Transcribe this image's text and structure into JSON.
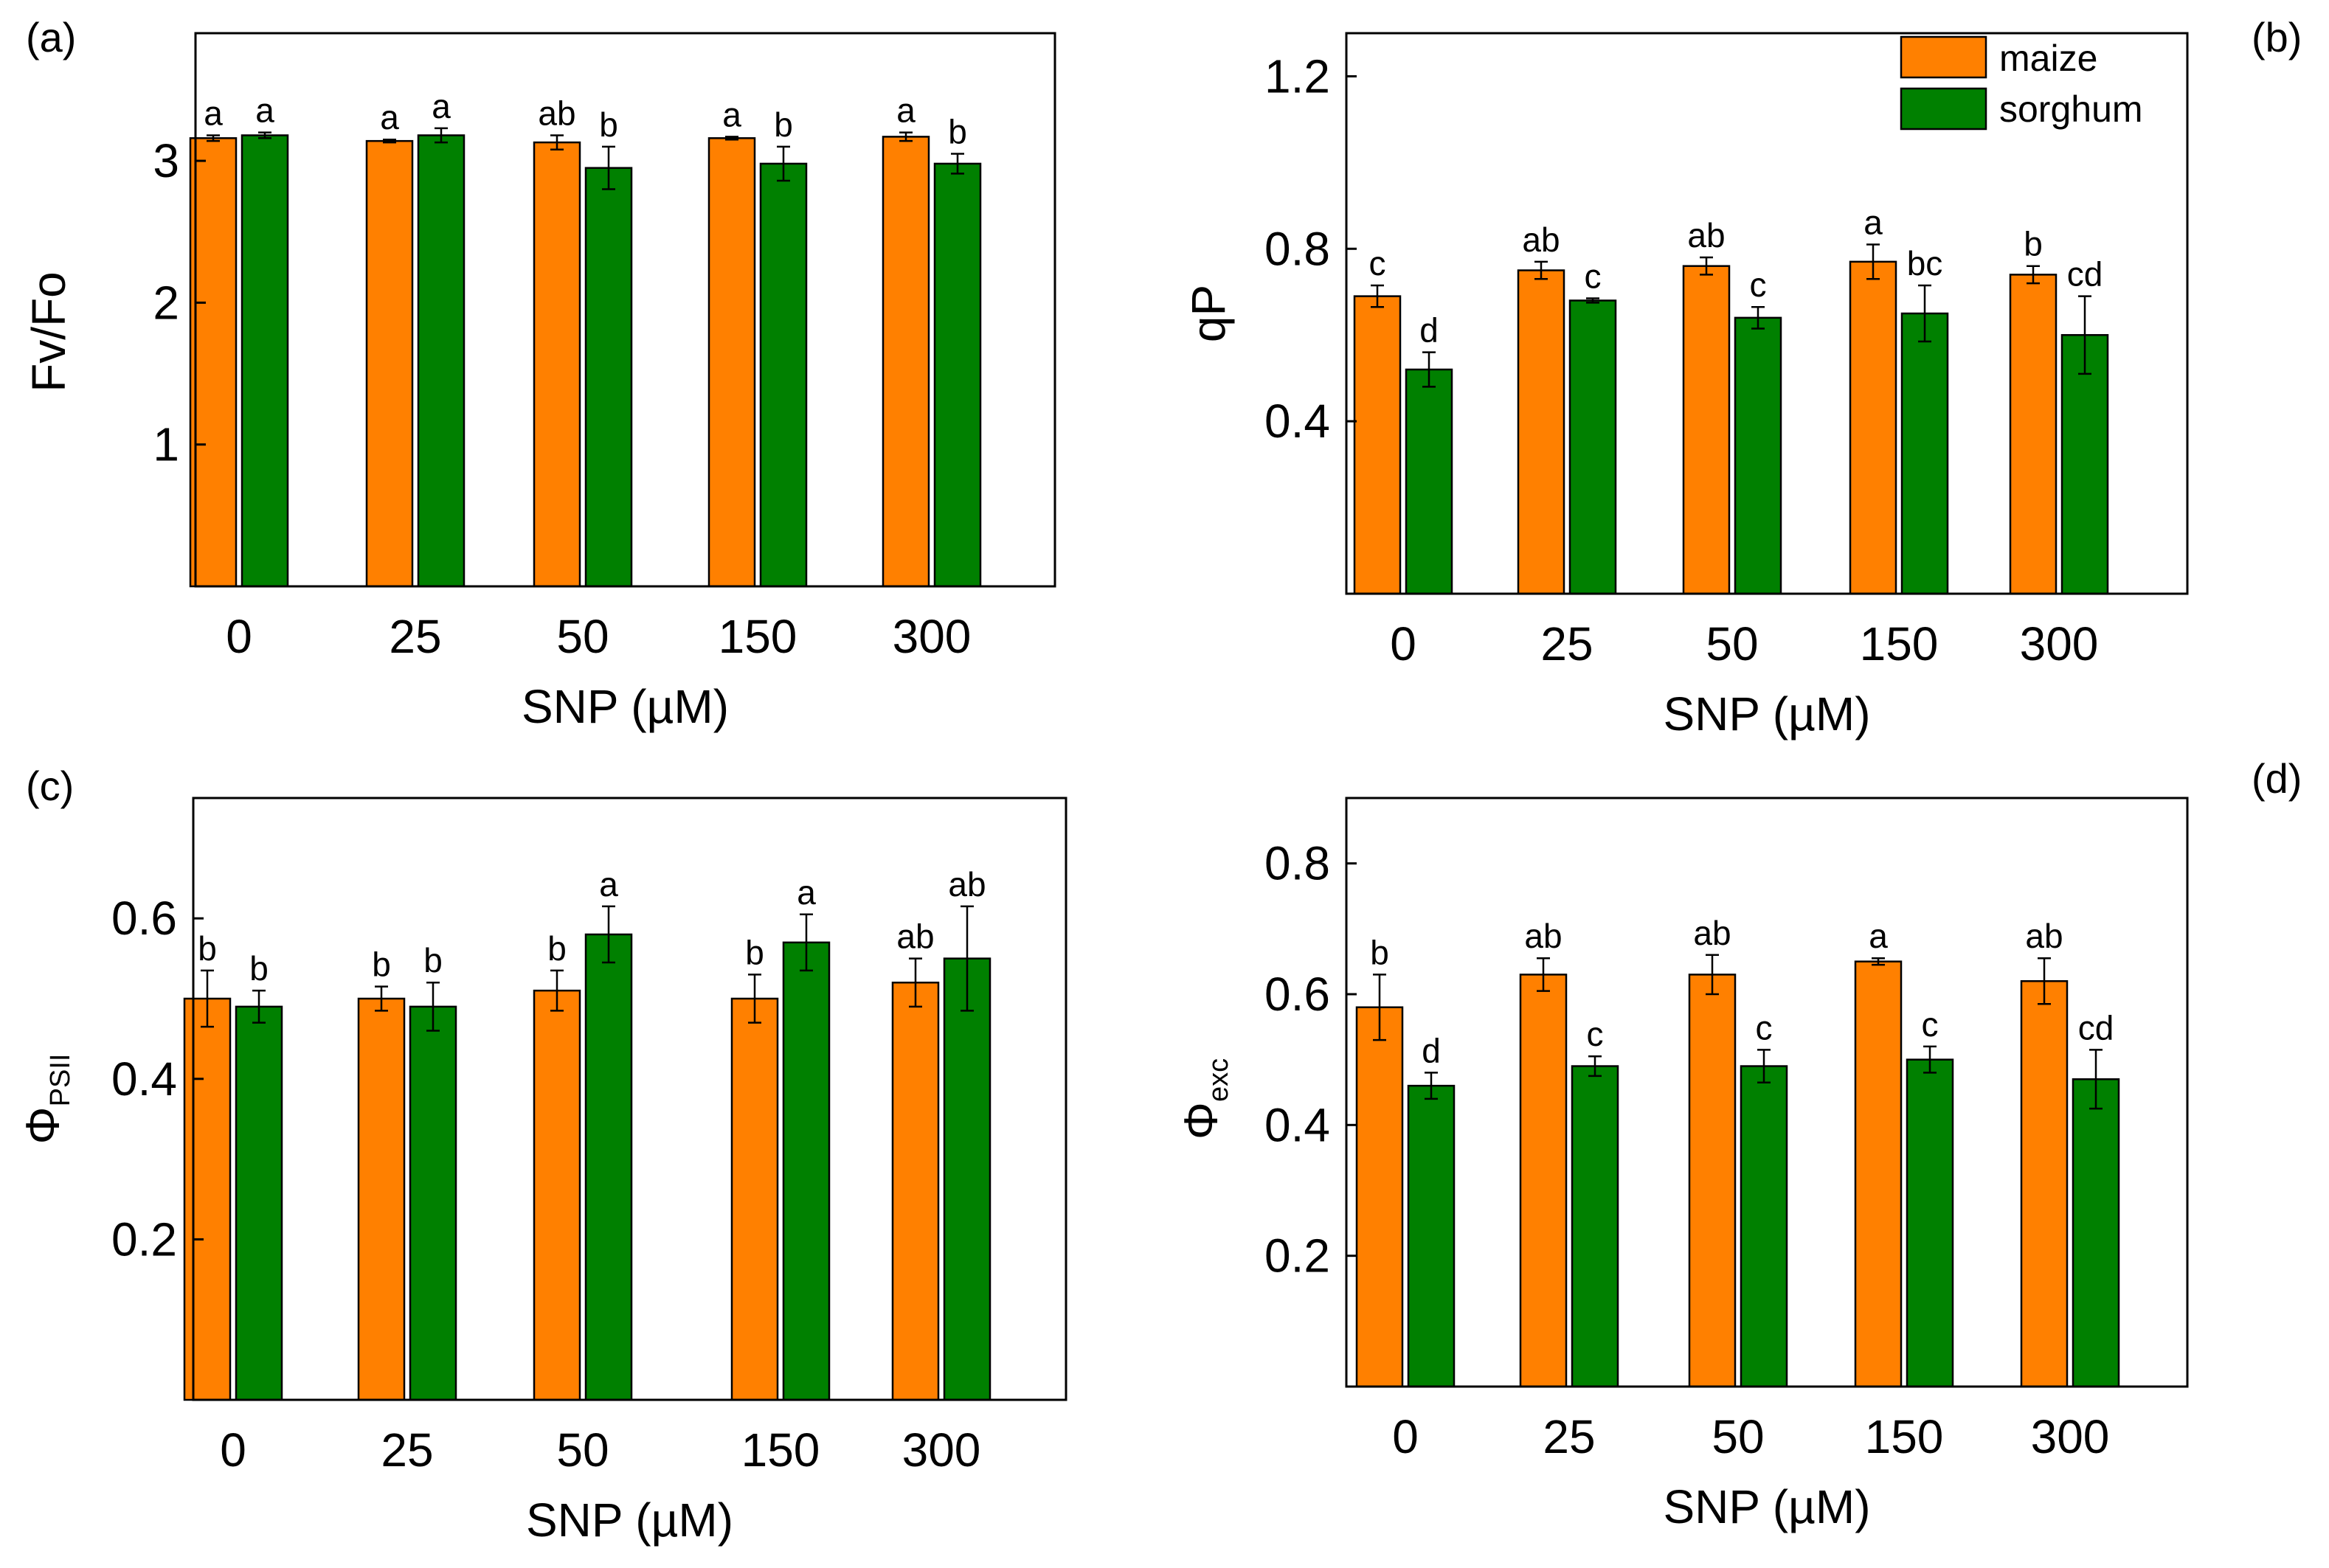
{
  "colors": {
    "maize": "#ff8000",
    "sorghum": "#008000"
  },
  "legend": {
    "maize": "maize",
    "sorghum": "sorghum"
  },
  "chart_data": [
    {
      "panel": "(a)",
      "type": "bar",
      "categories": [
        "0",
        "25",
        "50",
        "150",
        "300"
      ],
      "xlabel": "SNP (µM)",
      "ylabel": "Fv/Fo",
      "ylim": [
        0,
        3.9
      ],
      "yticks": [
        1,
        2,
        3
      ],
      "series": [
        {
          "name": "maize",
          "values": [
            3.16,
            3.14,
            3.13,
            3.16,
            3.17
          ],
          "errors": [
            0.02,
            0.01,
            0.05,
            0.01,
            0.03
          ],
          "letters": [
            "a",
            "a",
            "ab",
            "a",
            "a"
          ]
        },
        {
          "name": "sorghum",
          "values": [
            3.18,
            3.18,
            2.95,
            2.98,
            2.98
          ],
          "errors": [
            0.02,
            0.05,
            0.15,
            0.12,
            0.07
          ],
          "letters": [
            "a",
            "a",
            "b",
            "b",
            "b"
          ]
        }
      ]
    },
    {
      "panel": "(b)",
      "type": "bar",
      "categories": [
        "0",
        "25",
        "50",
        "150",
        "300"
      ],
      "xlabel": "SNP (µM)",
      "ylabel": "qP",
      "ylim": [
        0,
        1.3
      ],
      "yticks": [
        0.4,
        0.8,
        1.2
      ],
      "series": [
        {
          "name": "maize",
          "values": [
            0.69,
            0.75,
            0.76,
            0.77,
            0.74
          ],
          "errors": [
            0.025,
            0.02,
            0.02,
            0.04,
            0.02
          ],
          "letters": [
            "c",
            "ab",
            "ab",
            "a",
            "b"
          ]
        },
        {
          "name": "sorghum",
          "values": [
            0.52,
            0.68,
            0.64,
            0.65,
            0.6
          ],
          "errors": [
            0.04,
            0.005,
            0.025,
            0.065,
            0.09
          ],
          "letters": [
            "d",
            "c",
            "c",
            "bc",
            "cd"
          ]
        }
      ]
    },
    {
      "panel": "(c)",
      "type": "bar",
      "categories": [
        "0",
        "25",
        "50",
        "150",
        "300"
      ],
      "xlabel": "SNP (µM)",
      "ylabel": "ΦPSII",
      "ylim": [
        0,
        0.75
      ],
      "yticks": [
        0.2,
        0.4,
        0.6
      ],
      "series": [
        {
          "name": "maize",
          "values": [
            0.5,
            0.5,
            0.51,
            0.5,
            0.52
          ],
          "errors": [
            0.035,
            0.015,
            0.025,
            0.03,
            0.03
          ],
          "letters": [
            "b",
            "b",
            "b",
            "b",
            "ab"
          ]
        },
        {
          "name": "sorghum",
          "values": [
            0.49,
            0.49,
            0.58,
            0.57,
            0.55
          ],
          "errors": [
            0.02,
            0.03,
            0.035,
            0.035,
            0.065
          ],
          "letters": [
            "b",
            "b",
            "a",
            "a",
            "ab"
          ]
        }
      ]
    },
    {
      "panel": "(d)",
      "type": "bar",
      "categories": [
        "0",
        "25",
        "50",
        "150",
        "300"
      ],
      "xlabel": "SNP (µM)",
      "ylabel": "Φexc",
      "ylim": [
        0,
        0.9
      ],
      "yticks": [
        0.2,
        0.4,
        0.6,
        0.8
      ],
      "series": [
        {
          "name": "maize",
          "values": [
            0.58,
            0.63,
            0.63,
            0.65,
            0.62
          ],
          "errors": [
            0.05,
            0.025,
            0.03,
            0.005,
            0.035
          ],
          "letters": [
            "b",
            "ab",
            "ab",
            "a",
            "ab"
          ]
        },
        {
          "name": "sorghum",
          "values": [
            0.46,
            0.49,
            0.49,
            0.5,
            0.47
          ],
          "errors": [
            0.02,
            0.015,
            0.025,
            0.02,
            0.045
          ],
          "letters": [
            "d",
            "c",
            "c",
            "c",
            "cd"
          ]
        }
      ]
    }
  ],
  "ylabel_parts": {
    "c": {
      "main": "Φ",
      "sub": "PSII"
    },
    "d": {
      "main": "Φ",
      "sub": "exc"
    }
  }
}
